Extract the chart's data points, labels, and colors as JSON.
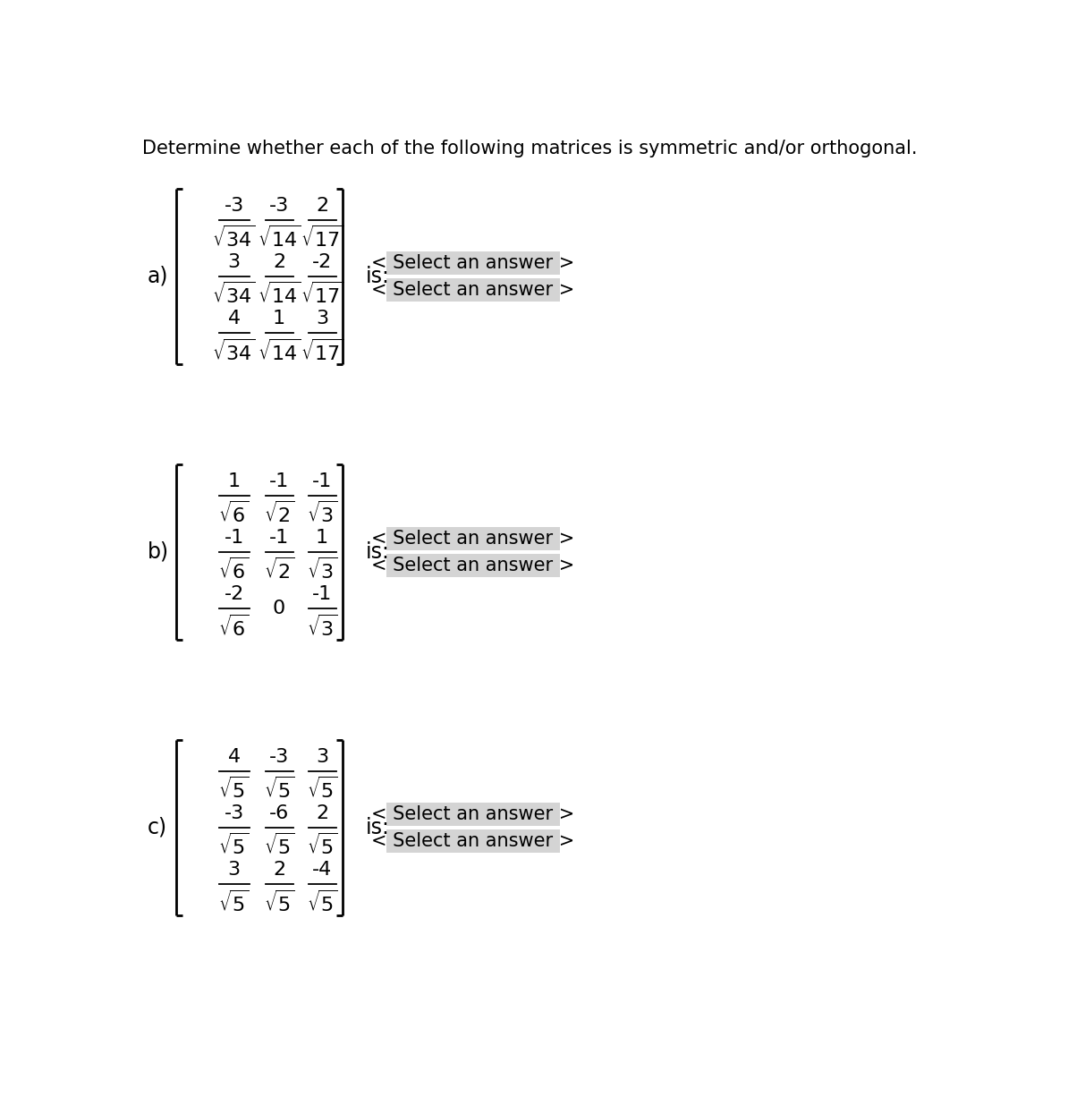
{
  "title": "Determine whether each of the following matrices is symmetric and/or orthogonal.",
  "background_color": "#ffffff",
  "parts": [
    {
      "label": "a)",
      "rows": [
        [
          "-3",
          "-3",
          "2"
        ],
        [
          "3",
          "2",
          "-2"
        ],
        [
          "4",
          "1",
          "3"
        ]
      ],
      "denoms": [
        [
          "\\sqrt{34}",
          "\\sqrt{14}",
          "\\sqrt{17}"
        ],
        [
          "\\sqrt{34}",
          "\\sqrt{14}",
          "\\sqrt{17}"
        ],
        [
          "\\sqrt{34}",
          "\\sqrt{14}",
          "\\sqrt{17}"
        ]
      ]
    },
    {
      "label": "b)",
      "rows": [
        [
          "1",
          "-1",
          "-1"
        ],
        [
          "-1",
          "-1",
          "1"
        ],
        [
          "-2",
          "0",
          "-1"
        ]
      ],
      "denoms": [
        [
          "\\sqrt{6}",
          "\\sqrt{2}",
          "\\sqrt{3}"
        ],
        [
          "\\sqrt{6}",
          "\\sqrt{2}",
          "\\sqrt{3}"
        ],
        [
          "\\sqrt{6}",
          null,
          "\\sqrt{3}"
        ]
      ]
    },
    {
      "label": "c)",
      "rows": [
        [
          "4",
          "-3",
          "3"
        ],
        [
          "-3",
          "-6",
          "2"
        ],
        [
          "3",
          "2",
          "-4"
        ]
      ],
      "denoms": [
        [
          "\\sqrt{5}",
          "\\sqrt{5}",
          "\\sqrt{5}"
        ],
        [
          "\\sqrt{5}",
          "\\sqrt{5}",
          "\\sqrt{5}"
        ],
        [
          "\\sqrt{5}",
          "\\sqrt{5}",
          "\\sqrt{5}"
        ]
      ]
    }
  ],
  "select_bg": "#d4d4d4",
  "title_fontsize": 15,
  "label_fontsize": 17,
  "matrix_fontsize": 16,
  "select_fontsize": 15
}
